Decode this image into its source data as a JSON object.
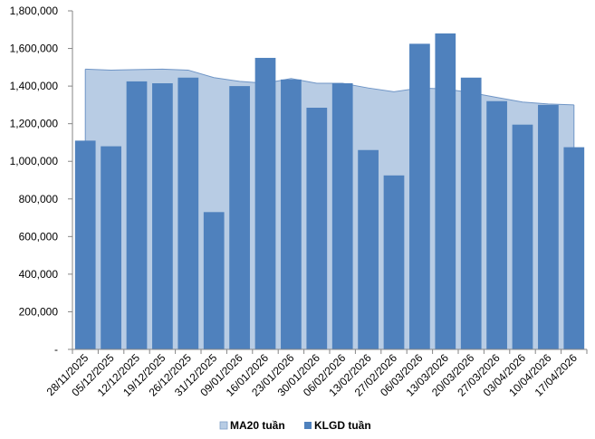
{
  "chart_data": {
    "type": "bar",
    "categories": [
      "28/11/2025",
      "05/12/2025",
      "12/12/2025",
      "19/12/2025",
      "26/12/2025",
      "31/12/2025",
      "09/01/2026",
      "16/01/2026",
      "23/01/2026",
      "30/01/2026",
      "06/02/2026",
      "13/02/2026",
      "27/02/2026",
      "06/03/2026",
      "13/03/2026",
      "20/03/2026",
      "27/03/2026",
      "03/04/2026",
      "10/04/2026",
      "17/04/2026"
    ],
    "series": [
      {
        "name": "MA20 tuần",
        "type": "area",
        "color": "#b8cce4",
        "values": [
          1490000,
          1485000,
          1488000,
          1490000,
          1485000,
          1445000,
          1425000,
          1415000,
          1440000,
          1415000,
          1415000,
          1390000,
          1370000,
          1390000,
          1385000,
          1365000,
          1340000,
          1315000,
          1305000,
          1300000
        ]
      },
      {
        "name": "KLGD tuần",
        "type": "bar",
        "color": "#4f81bd",
        "values": [
          1110000,
          1080000,
          1425000,
          1415000,
          1445000,
          730000,
          1400000,
          1550000,
          1435000,
          1285000,
          1415000,
          1060000,
          925000,
          1625000,
          1680000,
          1445000,
          1320000,
          1195000,
          1300000,
          1075000
        ]
      }
    ],
    "ylim": [
      0,
      1800000
    ],
    "yticks": [
      {
        "value": 0,
        "label": "-"
      },
      {
        "value": 200000,
        "label": "200,000"
      },
      {
        "value": 400000,
        "label": "400,000"
      },
      {
        "value": 600000,
        "label": "600,000"
      },
      {
        "value": 800000,
        "label": "800,000"
      },
      {
        "value": 1000000,
        "label": "1,000,000"
      },
      {
        "value": 1200000,
        "label": "1,200,000"
      },
      {
        "value": 1400000,
        "label": "1,400,000"
      },
      {
        "value": 1600000,
        "label": "1,600,000"
      },
      {
        "value": 1800000,
        "label": "1,800,000"
      }
    ],
    "grid": false,
    "legend_position": "bottom",
    "title": "",
    "xlabel": "",
    "ylabel": ""
  }
}
